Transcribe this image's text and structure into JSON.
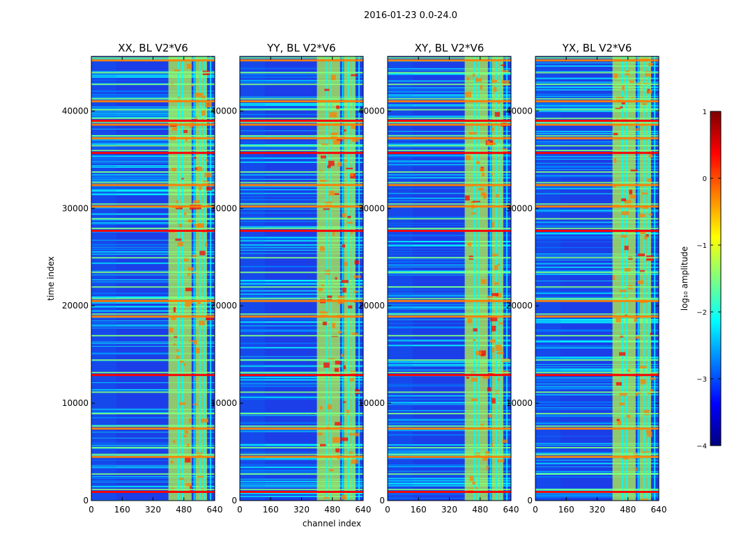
{
  "figure": {
    "suptitle": "2016-01-23 0.0-24.0",
    "xlabel": "channel index",
    "ylabel": "time index",
    "colorbar_label": "log₁₀ amplitude"
  },
  "colors": {
    "jet": [
      "#00007f",
      "#0000ff",
      "#007fff",
      "#00ffff",
      "#7fff7f",
      "#ffff00",
      "#ff7f00",
      "#ff0000",
      "#7f0000"
    ],
    "background_band": "#1c3ee8"
  },
  "chart_data": {
    "type": "heatmap",
    "colormap": "jet",
    "panels": [
      {
        "title": "XX, BL V2*V6",
        "pol": "XX"
      },
      {
        "title": "YY, BL V2*V6",
        "pol": "YY"
      },
      {
        "title": "XY, BL V2*V6",
        "pol": "XY"
      },
      {
        "title": "YX, BL V2*V6",
        "pol": "YX"
      }
    ],
    "x_range": [
      0,
      640
    ],
    "y_range": [
      0,
      45600
    ],
    "x_ticks": [
      0,
      160,
      320,
      480,
      640
    ],
    "y_ticks": [
      0,
      10000,
      20000,
      30000,
      40000
    ],
    "x_tick_labels": [
      "0",
      "160",
      "320",
      "480",
      "640"
    ],
    "y_tick_labels": [
      "0",
      "10000",
      "20000",
      "30000",
      "40000"
    ],
    "colorbar": {
      "range": [
        -4,
        1
      ],
      "ticks": [
        1,
        0,
        -1,
        -2,
        -3,
        -4
      ],
      "tick_labels": [
        "1",
        "0",
        "−1",
        "−2",
        "−3",
        "−4"
      ]
    },
    "rfi_channel_ranges": [
      [
        400,
        520
      ],
      [
        540,
        600
      ]
    ],
    "strong_rfi_time_bands": [
      1000,
      4600,
      7500,
      13000,
      19000,
      20600,
      27800,
      30300,
      32500,
      35800,
      37300,
      38700,
      39100,
      41100,
      45300
    ],
    "moderate_rfi_time_bands": [
      2800,
      5500,
      9000,
      11200,
      14500,
      17000,
      22000,
      23500,
      25000,
      29000,
      33800,
      36500,
      40200,
      42800,
      44000
    ]
  }
}
